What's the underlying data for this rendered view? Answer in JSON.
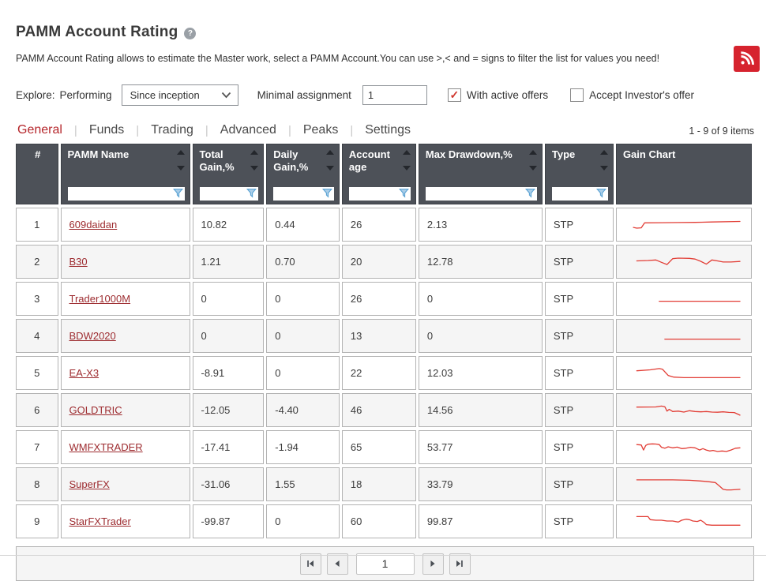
{
  "page": {
    "title": "PAMM Account Rating",
    "help_glyph": "?",
    "description": "PAMM Account Rating allows to estimate the Master work, select a PAMM Account.You can use >,< and = signs to filter the list for values you need!"
  },
  "controls": {
    "explore_label": "Explore:",
    "mode_label": "Performing",
    "period_select": {
      "value": "Since inception"
    },
    "min_assignment_label": "Minimal assignment",
    "min_assignment_value": "1",
    "checkbox_active_offers": {
      "label": "With active offers",
      "checked": true,
      "check_glyph": "✓"
    },
    "checkbox_accept_investor": {
      "label": "Accept Investor's offer",
      "checked": false
    }
  },
  "tabs": {
    "items": [
      "General",
      "Funds",
      "Trading",
      "Advanced",
      "Peaks",
      "Settings"
    ],
    "active": "General"
  },
  "items_count": "1 - 9 of 9 items",
  "table": {
    "columns": [
      {
        "key": "num",
        "label": "#",
        "width": 55,
        "sortable": false,
        "filterable": false,
        "align": "center"
      },
      {
        "key": "name",
        "label": "PAMM Name",
        "width": 167,
        "sortable": true,
        "filterable": true
      },
      {
        "key": "total_gain",
        "label": "Total Gain,%",
        "width": 92,
        "sortable": true,
        "filterable": true
      },
      {
        "key": "daily_gain",
        "label": "Daily Gain,%",
        "width": 94,
        "sortable": true,
        "filterable": true
      },
      {
        "key": "age",
        "label": "Account age",
        "width": 95,
        "sortable": true,
        "filterable": true
      },
      {
        "key": "drawdown",
        "label": "Max Drawdown,%",
        "width": 160,
        "sortable": true,
        "filterable": true
      },
      {
        "key": "type",
        "label": "Type",
        "width": 89,
        "sortable": true,
        "filterable": true
      },
      {
        "key": "chart",
        "label": "Gain Chart",
        "width": 162,
        "sortable": false,
        "filterable": false
      }
    ],
    "rows": [
      {
        "num": "1",
        "name": "609daidan",
        "total_gain": "10.82",
        "daily_gain": "0.44",
        "age": "26",
        "drawdown": "2.13",
        "type": "STP",
        "spark": [
          [
            5,
            30
          ],
          [
            8,
            26
          ],
          [
            12,
            28
          ],
          [
            15,
            55
          ],
          [
            30,
            56
          ],
          [
            45,
            57
          ],
          [
            60,
            58
          ],
          [
            75,
            60
          ],
          [
            100,
            63
          ]
        ]
      },
      {
        "num": "2",
        "name": "B30",
        "total_gain": "1.21",
        "daily_gain": "0.70",
        "age": "20",
        "drawdown": "12.78",
        "type": "STP",
        "spark": [
          [
            8,
            50
          ],
          [
            18,
            52
          ],
          [
            25,
            55
          ],
          [
            30,
            42
          ],
          [
            35,
            30
          ],
          [
            40,
            62
          ],
          [
            45,
            65
          ],
          [
            55,
            64
          ],
          [
            60,
            60
          ],
          [
            65,
            48
          ],
          [
            70,
            32
          ],
          [
            75,
            55
          ],
          [
            80,
            50
          ],
          [
            85,
            44
          ],
          [
            92,
            44
          ],
          [
            100,
            47
          ]
        ]
      },
      {
        "num": "3",
        "name": "Trader1000M",
        "total_gain": "0",
        "daily_gain": "0",
        "age": "26",
        "drawdown": "0",
        "type": "STP",
        "spark": [
          [
            28,
            32
          ],
          [
            100,
            32
          ]
        ]
      },
      {
        "num": "4",
        "name": "BDW2020",
        "total_gain": "0",
        "daily_gain": "0",
        "age": "13",
        "drawdown": "0",
        "type": "STP",
        "spark": [
          [
            33,
            28
          ],
          [
            100,
            28
          ]
        ]
      },
      {
        "num": "5",
        "name": "EA-X3",
        "total_gain": "-8.91",
        "daily_gain": "0",
        "age": "22",
        "drawdown": "12.03",
        "type": "STP",
        "spark": [
          [
            8,
            58
          ],
          [
            20,
            63
          ],
          [
            28,
            70
          ],
          [
            31,
            66
          ],
          [
            36,
            32
          ],
          [
            41,
            23
          ],
          [
            50,
            20
          ],
          [
            100,
            20
          ]
        ]
      },
      {
        "num": "6",
        "name": "GOLDTRIC",
        "total_gain": "-12.05",
        "daily_gain": "-4.40",
        "age": "46",
        "drawdown": "14.56",
        "type": "STP",
        "spark": [
          [
            8,
            62
          ],
          [
            25,
            63
          ],
          [
            30,
            68
          ],
          [
            33,
            64
          ],
          [
            35,
            40
          ],
          [
            37,
            50
          ],
          [
            40,
            38
          ],
          [
            45,
            40
          ],
          [
            50,
            35
          ],
          [
            55,
            42
          ],
          [
            60,
            38
          ],
          [
            65,
            36
          ],
          [
            70,
            38
          ],
          [
            75,
            35
          ],
          [
            80,
            34
          ],
          [
            85,
            36
          ],
          [
            90,
            33
          ],
          [
            95,
            32
          ],
          [
            100,
            18
          ]
        ]
      },
      {
        "num": "7",
        "name": "WMFXTRADER",
        "total_gain": "-17.41",
        "daily_gain": "-1.94",
        "age": "65",
        "drawdown": "53.77",
        "type": "STP",
        "spark": [
          [
            8,
            60
          ],
          [
            12,
            58
          ],
          [
            14,
            30
          ],
          [
            16,
            55
          ],
          [
            18,
            62
          ],
          [
            22,
            64
          ],
          [
            25,
            63
          ],
          [
            28,
            60
          ],
          [
            30,
            45
          ],
          [
            33,
            40
          ],
          [
            36,
            48
          ],
          [
            40,
            42
          ],
          [
            44,
            46
          ],
          [
            48,
            38
          ],
          [
            52,
            40
          ],
          [
            56,
            45
          ],
          [
            60,
            42
          ],
          [
            64,
            30
          ],
          [
            67,
            38
          ],
          [
            70,
            30
          ],
          [
            73,
            25
          ],
          [
            76,
            28
          ],
          [
            80,
            22
          ],
          [
            84,
            25
          ],
          [
            88,
            22
          ],
          [
            92,
            30
          ],
          [
            96,
            40
          ],
          [
            100,
            42
          ]
        ]
      },
      {
        "num": "8",
        "name": "SuperFX",
        "total_gain": "-31.06",
        "daily_gain": "1.55",
        "age": "18",
        "drawdown": "33.79",
        "type": "STP",
        "spark": [
          [
            8,
            70
          ],
          [
            40,
            70
          ],
          [
            55,
            68
          ],
          [
            65,
            64
          ],
          [
            72,
            60
          ],
          [
            78,
            55
          ],
          [
            82,
            35
          ],
          [
            85,
            18
          ],
          [
            88,
            15
          ],
          [
            92,
            15
          ],
          [
            100,
            18
          ]
        ]
      },
      {
        "num": "9",
        "name": "StarFXTrader",
        "total_gain": "-99.87",
        "daily_gain": "0",
        "age": "60",
        "drawdown": "99.87",
        "type": "STP",
        "spark": [
          [
            8,
            72
          ],
          [
            18,
            72
          ],
          [
            20,
            55
          ],
          [
            25,
            52
          ],
          [
            30,
            52
          ],
          [
            35,
            48
          ],
          [
            40,
            48
          ],
          [
            45,
            42
          ],
          [
            48,
            52
          ],
          [
            52,
            58
          ],
          [
            55,
            55
          ],
          [
            58,
            48
          ],
          [
            62,
            45
          ],
          [
            65,
            52
          ],
          [
            68,
            40
          ],
          [
            70,
            28
          ],
          [
            75,
            25
          ],
          [
            100,
            25
          ]
        ]
      }
    ]
  },
  "pager": {
    "page_value": "1"
  },
  "colors": {
    "accent_red": "#d6232e",
    "tab_active_red": "#b5262b",
    "link_red": "#9d2b2f",
    "header_bg": "#4d5158",
    "filter_blue": "#5ba3d4",
    "spark_red": "#e23d35",
    "check_red": "#cf352c"
  }
}
